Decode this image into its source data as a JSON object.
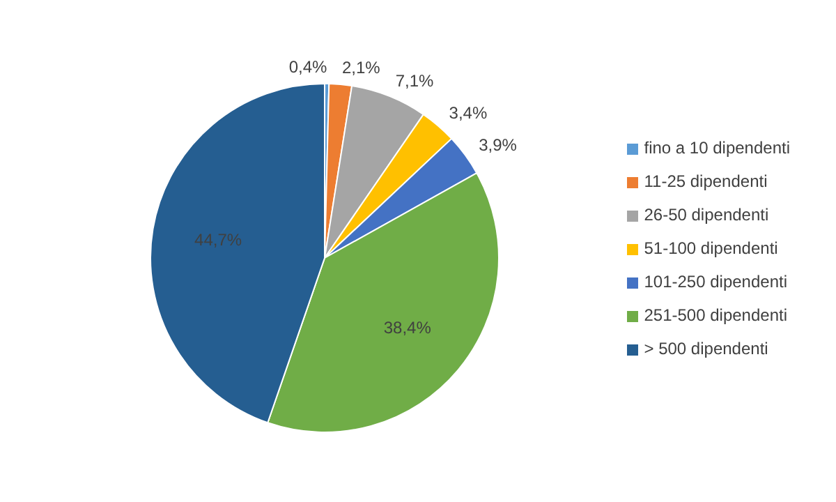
{
  "chart_data": {
    "type": "pie",
    "categories": [
      "fino a 10 dipendenti",
      "11-25 dipendenti",
      "26-50 dipendenti",
      "51-100 dipendenti",
      "101-250 dipendenti",
      "251-500 dipendenti",
      "> 500 dipendenti"
    ],
    "values": [
      0.4,
      2.1,
      7.1,
      3.4,
      3.9,
      38.4,
      44.7
    ],
    "value_labels": [
      "0,4%",
      "2,1%",
      "7,1%",
      "3,4%",
      "3,9%",
      "38,4%",
      "44,7%"
    ],
    "colors": [
      "#5b9bd5",
      "#ed7d31",
      "#a5a5a5",
      "#ffc000",
      "#4472c4",
      "#70ad47",
      "#255e91"
    ],
    "legend": "right"
  }
}
